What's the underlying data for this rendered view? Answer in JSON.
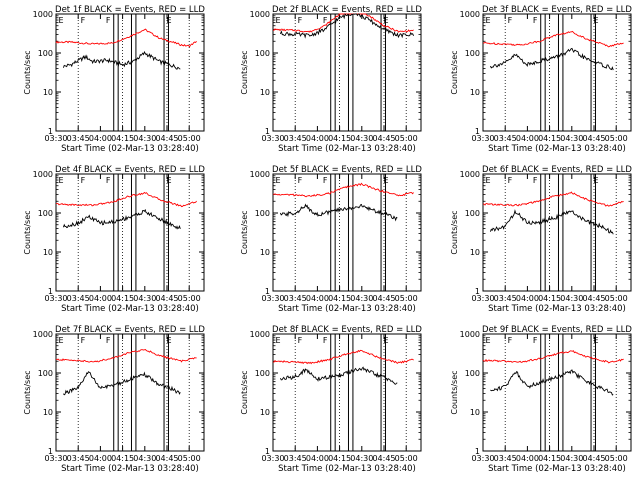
{
  "chart_data": [
    {
      "type": "line",
      "title": "Det 1f BLACK = Events, RED = LLD",
      "ylabel": "Counts/sec",
      "xlabel": "Start Time (02-Mar-13 03:28:40)",
      "x_ticks": [
        "03:30",
        "03:45",
        "04:00",
        "04:15",
        "04:30",
        "04:45",
        "05:00"
      ],
      "y_ticks": [
        "1",
        "10",
        "100",
        "1000"
      ],
      "ylim": [
        1,
        1000
      ],
      "yscale": "log",
      "events_range": [
        "03:35",
        "04:54"
      ],
      "markers": [
        {
          "label": "E",
          "t": "03:31"
        },
        {
          "label": "F",
          "t": "03:46"
        },
        {
          "label": "F",
          "t": "04:03"
        },
        {
          "label": "E",
          "t": "04:44"
        }
      ],
      "series": [
        {
          "name": "LLD",
          "color": "#ff0000",
          "x": [
            "03:30",
            "03:40",
            "03:55",
            "04:08",
            "04:18",
            "04:30",
            "04:40",
            "04:55",
            "05:00",
            "05:05"
          ],
          "values": [
            190,
            190,
            170,
            180,
            250,
            400,
            240,
            160,
            150,
            200
          ]
        },
        {
          "name": "Events",
          "color": "#000000",
          "x": [
            "03:35",
            "03:40",
            "03:50",
            "03:55",
            "04:05",
            "04:15",
            "04:22",
            "04:30",
            "04:40",
            "04:47",
            "04:54"
          ],
          "values": [
            45,
            50,
            80,
            60,
            65,
            50,
            60,
            100,
            60,
            50,
            40
          ]
        }
      ]
    },
    {
      "type": "line",
      "title": "Det 2f BLACK = Events, RED = LLD",
      "ylabel": "Counts/sec",
      "xlabel": "Start Time (02-Mar-13 03:28:40)",
      "x_ticks": [
        "03:30",
        "03:45",
        "04:00",
        "04:15",
        "04:30",
        "04:45",
        "05:00"
      ],
      "y_ticks": [
        "1",
        "10",
        "100",
        "1000"
      ],
      "ylim": [
        1,
        1000
      ],
      "yscale": "log",
      "events_range": [
        "03:35",
        "05:05"
      ],
      "markers": [
        {
          "label": "E",
          "t": "03:31"
        },
        {
          "label": "F",
          "t": "03:46"
        },
        {
          "label": "F",
          "t": "04:03"
        },
        {
          "label": "E",
          "t": "04:44"
        }
      ],
      "series": [
        {
          "name": "LLD",
          "color": "#ff0000",
          "x": [
            "03:30",
            "03:45",
            "03:55",
            "04:05",
            "04:15",
            "04:25",
            "04:35",
            "04:45",
            "04:55",
            "05:05"
          ],
          "values": [
            400,
            380,
            350,
            500,
            1000,
            1400,
            900,
            500,
            350,
            380
          ]
        },
        {
          "name": "Events",
          "color": "#000000",
          "x": [
            "03:35",
            "03:45",
            "03:55",
            "04:05",
            "04:15",
            "04:25",
            "04:35",
            "04:45",
            "04:55",
            "05:05"
          ],
          "values": [
            320,
            300,
            280,
            400,
            800,
            1100,
            700,
            400,
            280,
            300
          ]
        }
      ]
    },
    {
      "type": "line",
      "title": "Det 3f BLACK = Events, RED = LLD",
      "ylabel": "Counts/sec",
      "xlabel": "Start Time (02-Mar-13 03:28:40)",
      "x_ticks": [
        "03:30",
        "03:45",
        "04:00",
        "04:15",
        "04:30",
        "04:45",
        "05:00"
      ],
      "y_ticks": [
        "1",
        "10",
        "100",
        "1000"
      ],
      "ylim": [
        1,
        1000
      ],
      "yscale": "log",
      "events_range": [
        "03:35",
        "04:58"
      ],
      "markers": [
        {
          "label": "E",
          "t": "03:31"
        },
        {
          "label": "F",
          "t": "03:46"
        },
        {
          "label": "F",
          "t": "04:03"
        },
        {
          "label": "E",
          "t": "04:44"
        }
      ],
      "series": [
        {
          "name": "LLD",
          "color": "#ff0000",
          "x": [
            "03:30",
            "03:45",
            "03:55",
            "04:08",
            "04:18",
            "04:30",
            "04:40",
            "04:55",
            "05:05"
          ],
          "values": [
            180,
            170,
            160,
            200,
            280,
            350,
            230,
            150,
            180
          ]
        },
        {
          "name": "Events",
          "color": "#000000",
          "x": [
            "03:35",
            "03:45",
            "03:52",
            "04:00",
            "04:10",
            "04:20",
            "04:30",
            "04:40",
            "04:50",
            "04:58"
          ],
          "values": [
            45,
            55,
            90,
            50,
            65,
            80,
            120,
            70,
            50,
            40
          ]
        }
      ]
    },
    {
      "type": "line",
      "title": "Det 4f BLACK = Events, RED = LLD",
      "ylabel": "Counts/sec",
      "xlabel": "Start Time (02-Mar-13 03:28:40)",
      "x_ticks": [
        "03:30",
        "03:45",
        "04:00",
        "04:15",
        "04:30",
        "04:45",
        "05:00"
      ],
      "y_ticks": [
        "1",
        "10",
        "100",
        "1000"
      ],
      "ylim": [
        1,
        1000
      ],
      "yscale": "log",
      "events_range": [
        "03:35",
        "04:54"
      ],
      "markers": [
        {
          "label": "E",
          "t": "03:31"
        },
        {
          "label": "F",
          "t": "03:46"
        },
        {
          "label": "F",
          "t": "04:03"
        },
        {
          "label": "E",
          "t": "04:44"
        }
      ],
      "series": [
        {
          "name": "LLD",
          "color": "#ff0000",
          "x": [
            "03:30",
            "03:45",
            "03:55",
            "04:08",
            "04:18",
            "04:30",
            "04:40",
            "04:55",
            "05:05"
          ],
          "values": [
            170,
            160,
            160,
            190,
            260,
            330,
            220,
            150,
            200
          ]
        },
        {
          "name": "Events",
          "color": "#000000",
          "x": [
            "03:35",
            "03:45",
            "03:52",
            "04:00",
            "04:10",
            "04:20",
            "04:30",
            "04:40",
            "04:48",
            "04:54"
          ],
          "values": [
            45,
            55,
            80,
            55,
            60,
            80,
            110,
            70,
            50,
            40
          ]
        }
      ]
    },
    {
      "type": "line",
      "title": "Det 5f BLACK = Events, RED = LLD",
      "ylabel": "Counts/sec",
      "xlabel": "Start Time (02-Mar-13 03:28:40)",
      "x_ticks": [
        "03:30",
        "03:45",
        "04:00",
        "04:15",
        "04:30",
        "04:45",
        "05:00"
      ],
      "y_ticks": [
        "1",
        "10",
        "100",
        "1000"
      ],
      "ylim": [
        1,
        1000
      ],
      "yscale": "log",
      "events_range": [
        "03:35",
        "04:54"
      ],
      "markers": [
        {
          "label": "E",
          "t": "03:31"
        },
        {
          "label": "F",
          "t": "03:46"
        },
        {
          "label": "F",
          "t": "04:03"
        },
        {
          "label": "E",
          "t": "04:44"
        }
      ],
      "series": [
        {
          "name": "LLD",
          "color": "#ff0000",
          "x": [
            "03:30",
            "03:45",
            "03:55",
            "04:08",
            "04:18",
            "04:30",
            "04:40",
            "04:55",
            "05:05"
          ],
          "values": [
            300,
            290,
            270,
            320,
            450,
            550,
            400,
            280,
            330
          ]
        },
        {
          "name": "Events",
          "color": "#000000",
          "x": [
            "03:35",
            "03:45",
            "03:52",
            "04:00",
            "04:10",
            "04:20",
            "04:30",
            "04:40",
            "04:48",
            "04:54"
          ],
          "values": [
            90,
            100,
            150,
            90,
            110,
            130,
            150,
            110,
            90,
            70
          ]
        }
      ]
    },
    {
      "type": "line",
      "title": "Det 6f BLACK = Events, RED = LLD",
      "ylabel": "Counts/sec",
      "xlabel": "Start Time (02-Mar-13 03:28:40)",
      "x_ticks": [
        "03:30",
        "03:45",
        "04:00",
        "04:15",
        "04:30",
        "04:45",
        "05:00"
      ],
      "y_ticks": [
        "1",
        "10",
        "100",
        "1000"
      ],
      "ylim": [
        1,
        1000
      ],
      "yscale": "log",
      "events_range": [
        "03:35",
        "04:58"
      ],
      "markers": [
        {
          "label": "E",
          "t": "03:31"
        },
        {
          "label": "F",
          "t": "03:46"
        },
        {
          "label": "F",
          "t": "04:03"
        },
        {
          "label": "E",
          "t": "04:44"
        }
      ],
      "series": [
        {
          "name": "LLD",
          "color": "#ff0000",
          "x": [
            "03:30",
            "03:45",
            "03:55",
            "04:08",
            "04:18",
            "04:30",
            "04:40",
            "04:55",
            "05:05"
          ],
          "values": [
            170,
            160,
            160,
            200,
            270,
            330,
            220,
            150,
            200
          ]
        },
        {
          "name": "Events",
          "color": "#000000",
          "x": [
            "03:35",
            "03:45",
            "03:52",
            "04:00",
            "04:10",
            "04:20",
            "04:30",
            "04:40",
            "04:50",
            "04:58"
          ],
          "values": [
            35,
            45,
            110,
            55,
            60,
            80,
            110,
            60,
            45,
            30
          ]
        }
      ]
    },
    {
      "type": "line",
      "title": "Det 7f BLACK = Events, RED = LLD",
      "ylabel": "Counts/sec",
      "xlabel": "Start Time (02-Mar-13 03:28:40)",
      "x_ticks": [
        "03:30",
        "03:45",
        "04:00",
        "04:15",
        "04:30",
        "04:45",
        "05:00"
      ],
      "y_ticks": [
        "1",
        "10",
        "100",
        "1000"
      ],
      "ylim": [
        1,
        1000
      ],
      "yscale": "log",
      "events_range": [
        "03:35",
        "04:54"
      ],
      "markers": [
        {
          "label": "E",
          "t": "03:31"
        },
        {
          "label": "F",
          "t": "03:46"
        },
        {
          "label": "F",
          "t": "04:03"
        },
        {
          "label": "E",
          "t": "04:44"
        }
      ],
      "series": [
        {
          "name": "LLD",
          "color": "#ff0000",
          "x": [
            "03:30",
            "03:45",
            "03:55",
            "04:08",
            "04:18",
            "04:30",
            "04:40",
            "04:55",
            "05:05"
          ],
          "values": [
            220,
            210,
            190,
            240,
            320,
            400,
            280,
            200,
            250
          ]
        },
        {
          "name": "Events",
          "color": "#000000",
          "x": [
            "03:35",
            "03:45",
            "03:52",
            "04:00",
            "04:10",
            "04:20",
            "04:30",
            "04:40",
            "04:48",
            "04:54"
          ],
          "values": [
            30,
            40,
            110,
            40,
            50,
            70,
            90,
            50,
            40,
            30
          ]
        }
      ]
    },
    {
      "type": "line",
      "title": "Det 8f BLACK = Events, RED = LLD",
      "ylabel": "Counts/sec",
      "xlabel": "Start Time (02-Mar-13 03:28:40)",
      "x_ticks": [
        "03:30",
        "03:45",
        "04:00",
        "04:15",
        "04:30",
        "04:45",
        "05:00"
      ],
      "y_ticks": [
        "1",
        "10",
        "100",
        "1000"
      ],
      "ylim": [
        1,
        1000
      ],
      "yscale": "log",
      "events_range": [
        "03:35",
        "04:54"
      ],
      "markers": [
        {
          "label": "E",
          "t": "03:31"
        },
        {
          "label": "F",
          "t": "03:46"
        },
        {
          "label": "F",
          "t": "04:03"
        },
        {
          "label": "E",
          "t": "04:44"
        }
      ],
      "series": [
        {
          "name": "LLD",
          "color": "#ff0000",
          "x": [
            "03:30",
            "03:45",
            "03:55",
            "04:08",
            "04:18",
            "04:30",
            "04:40",
            "04:55",
            "05:05"
          ],
          "values": [
            200,
            190,
            180,
            220,
            300,
            380,
            260,
            180,
            220
          ]
        },
        {
          "name": "Events",
          "color": "#000000",
          "x": [
            "03:35",
            "03:45",
            "03:52",
            "04:00",
            "04:10",
            "04:20",
            "04:30",
            "04:40",
            "04:48",
            "04:54"
          ],
          "values": [
            70,
            80,
            120,
            70,
            80,
            100,
            130,
            90,
            70,
            50
          ]
        }
      ]
    },
    {
      "type": "line",
      "title": "Det 9f BLACK = Events, RED = LLD",
      "ylabel": "Counts/sec",
      "xlabel": "Start Time (02-Mar-13 03:28:40)",
      "x_ticks": [
        "03:30",
        "03:45",
        "04:00",
        "04:15",
        "04:30",
        "04:45",
        "05:00"
      ],
      "y_ticks": [
        "1",
        "10",
        "100",
        "1000"
      ],
      "ylim": [
        1,
        1000
      ],
      "yscale": "log",
      "events_range": [
        "03:35",
        "04:58"
      ],
      "markers": [
        {
          "label": "E",
          "t": "03:31"
        },
        {
          "label": "F",
          "t": "03:46"
        },
        {
          "label": "F",
          "t": "04:03"
        },
        {
          "label": "E",
          "t": "04:44"
        }
      ],
      "series": [
        {
          "name": "LLD",
          "color": "#ff0000",
          "x": [
            "03:30",
            "03:45",
            "03:55",
            "04:08",
            "04:18",
            "04:30",
            "04:40",
            "04:55",
            "05:05"
          ],
          "values": [
            210,
            200,
            190,
            230,
            300,
            370,
            260,
            190,
            220
          ]
        },
        {
          "name": "Events",
          "color": "#000000",
          "x": [
            "03:35",
            "03:45",
            "03:52",
            "04:00",
            "04:10",
            "04:20",
            "04:30",
            "04:40",
            "04:50",
            "04:58"
          ],
          "values": [
            35,
            45,
            110,
            45,
            60,
            80,
            110,
            60,
            40,
            30
          ]
        }
      ]
    }
  ]
}
